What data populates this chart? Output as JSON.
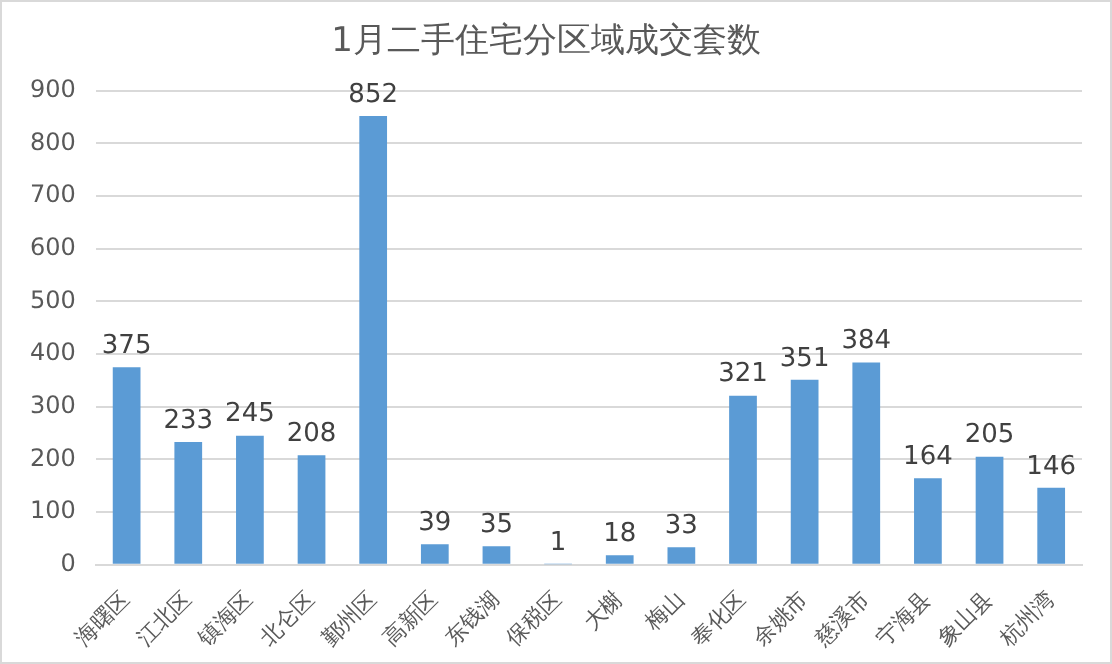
{
  "chart_data": {
    "type": "bar",
    "title": "1月二手住宅分区域成交套数",
    "categories": [
      "海曙区",
      "江北区",
      "镇海区",
      "北仑区",
      "鄞州区",
      "高新区",
      "东钱湖",
      "保税区",
      "大榭",
      "梅山",
      "奉化区",
      "余姚市",
      "慈溪市",
      "宁海县",
      "象山县",
      "杭州湾"
    ],
    "values": [
      375,
      233,
      245,
      208,
      852,
      39,
      35,
      1,
      18,
      33,
      321,
      351,
      384,
      164,
      205,
      146
    ],
    "color": "#5b9bd5",
    "ylim": [
      0,
      900
    ],
    "yticks": [
      0,
      100,
      200,
      300,
      400,
      500,
      600,
      700,
      800,
      900
    ],
    "grid": "y",
    "data_labels": true,
    "legend": false
  }
}
